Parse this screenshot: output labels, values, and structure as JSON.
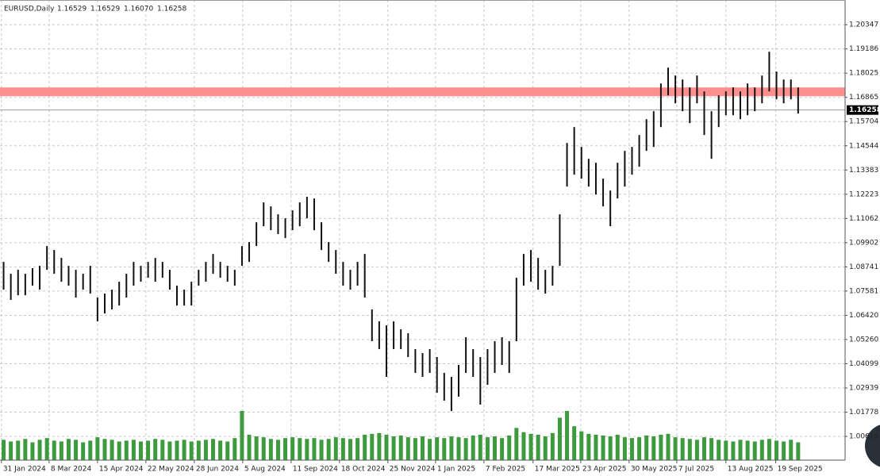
{
  "chart_data": {
    "type": "price-bars",
    "symbol": "EURUSD,Daily",
    "ohlc": [
      1.16529,
      1.16529,
      {
        "value": 1.1607,
        "label": "1.16070"
      },
      1.16258
    ],
    "last_price": 1.16258,
    "zone": [
      1.1692,
      1.1734
    ],
    "zone_color": "#ff7b7b",
    "bar_color": "#111111",
    "volume_color": "#3d9a3d",
    "grid": true,
    "xlim": [
      -0.5,
      116.5
    ],
    "ylim": [
      0.9948,
      1.2153
    ],
    "yticks": [
      1.20347,
      1.19186,
      1.18025,
      1.16865,
      1.15704,
      1.14544,
      1.13383,
      1.12223,
      1.11062,
      1.09902,
      1.08741,
      1.07581,
      {
        "value": 1.0642,
        "label": "1.06420"
      },
      {
        "value": 1.0526,
        "label": "1.05260"
      },
      1.04099,
      1.02939,
      1.01778,
      1.00618
    ],
    "xticks": [
      {
        "value": -0.3,
        "label": "31 Jan 2024"
      },
      {
        "value": 6.3,
        "label": "8 Mar 2024"
      },
      {
        "value": 13,
        "label": "15 Apr 2024"
      },
      {
        "value": 19.7,
        "label": "22 May 2024"
      },
      {
        "value": 26.4,
        "label": "28 Jun 2024"
      },
      {
        "value": 33.1,
        "label": "5 Aug 2024"
      },
      {
        "value": 39.8,
        "label": "11 Sep 2024"
      },
      {
        "value": 46.5,
        "label": "18 Oct 2024"
      },
      {
        "value": 53.2,
        "label": "25 Nov 2024"
      },
      {
        "value": 59.8,
        "label": "1 Jan 2025"
      },
      {
        "value": 66.5,
        "label": "7 Feb 2025"
      },
      {
        "value": 73.3,
        "label": "17 Mar 2025"
      },
      {
        "value": 79.9,
        "label": "23 Apr 2025"
      },
      {
        "value": 86.6,
        "label": "30 May 2025"
      },
      {
        "value": 93.2,
        "label": "7 Jul 2025"
      },
      {
        "value": 100,
        "label": "13 Aug 2025"
      },
      {
        "value": 106.9,
        "label": "19 Sep 2025"
      }
    ],
    "high": [
      1.0898,
      1.0841,
      1.086,
      1.0841,
      1.0868,
      1.0879,
      1.0974,
      1.0955,
      1.0917,
      1.0879,
      1.086,
      1.0841,
      1.0879,
      1.0727,
      1.0746,
      1.0765,
      1.0803,
      1.0841,
      1.0898,
      1.0879,
      1.0898,
      1.0917,
      1.0898,
      1.086,
      1.0784,
      1.0765,
      1.0803,
      1.086,
      1.0898,
      1.0936,
      1.0898,
      1.0879,
      1.086,
      1.0974,
      1.0993,
      1.1088,
      1.1183,
      1.1164,
      1.1126,
      1.1107,
      1.1145,
      1.1183,
      1.121,
      1.1202,
      1.1088,
      1.0993,
      1.0955,
      1.0898,
      1.086,
      1.0898,
      1.0936,
      1.067,
      1.0613,
      1.0594,
      1.0613,
      1.0575,
      1.0556,
      1.048,
      1.0461,
      1.048,
      1.0442,
      1.0366,
      1.0347,
      1.0404,
      1.0537,
      1.048,
      1.0442,
      1.048,
      1.0518,
      1.0537,
      1.0518,
      1.0822,
      1.0936,
      1.0955,
      1.0917,
      1.086,
      1.0879,
      1.1126,
      1.1468,
      1.1544,
      1.1449,
      1.1392,
      1.1373,
      1.1297,
      1.124,
      1.1373,
      1.143,
      1.1449,
      1.1506,
      1.1582,
      1.162,
      1.1753,
      1.1829,
      1.1791,
      1.1772,
      1.1734,
      1.1791,
      1.1715,
      1.162,
      1.1696,
      1.1715,
      1.1734,
      1.1715,
      1.1753,
      1.1734,
      1.1791,
      1.1905,
      1.181,
      1.1772,
      1.1772,
      1.1734
    ],
    "low": [
      1.0765,
      1.0716,
      1.0738,
      1.0738,
      1.0784,
      1.0765,
      1.086,
      1.0841,
      1.0803,
      1.0784,
      1.0727,
      1.0765,
      1.0746,
      1.0613,
      1.0651,
      1.067,
      1.0689,
      1.0727,
      1.0784,
      1.0803,
      1.0822,
      1.0803,
      1.0822,
      1.0765,
      1.0689,
      1.0689,
      1.0689,
      1.0784,
      1.0803,
      1.0841,
      1.0822,
      1.0803,
      1.0784,
      1.0879,
      1.0898,
      1.0974,
      1.1069,
      1.105,
      1.1031,
      1.1012,
      1.105,
      1.1069,
      1.1107,
      1.105,
      1.0955,
      1.0898,
      1.0841,
      1.0784,
      1.0765,
      1.0784,
      1.0727,
      1.0518,
      1.048,
      1.0347,
      1.048,
      1.048,
      1.0442,
      1.0366,
      1.0347,
      1.0366,
      1.0271,
      1.0233,
      1.0183,
      1.0252,
      1.0366,
      1.0347,
      1.0214,
      1.0309,
      1.0366,
      1.0404,
      1.0366,
      1.0518,
      1.0784,
      1.0803,
      1.0765,
      1.0746,
      1.0784,
      1.0879,
      1.1259,
      1.1316,
      1.1297,
      1.1259,
      1.1221,
      1.1164,
      1.1069,
      1.1202,
      1.1259,
      1.1316,
      1.1354,
      1.143,
      1.1449,
      1.1544,
      1.1696,
      1.1658,
      1.162,
      1.1563,
      1.1658,
      1.1506,
      1.1392,
      1.1544,
      1.1601,
      1.1601,
      1.1582,
      1.1601,
      1.162,
      1.1658,
      1.1715,
      1.1677,
      1.1658,
      1.1677,
      1.1609
    ],
    "volume": [
      24,
      22,
      23,
      25,
      21,
      24,
      26,
      23,
      22,
      25,
      24,
      21,
      23,
      27,
      25,
      24,
      22,
      23,
      24,
      22,
      23,
      25,
      24,
      22,
      23,
      24,
      22,
      23,
      24,
      25,
      23,
      22,
      26,
      58,
      30,
      28,
      27,
      25,
      24,
      26,
      27,
      26,
      25,
      26,
      24,
      25,
      27,
      26,
      25,
      26,
      30,
      31,
      32,
      30,
      28,
      29,
      27,
      26,
      28,
      25,
      27,
      26,
      28,
      27,
      26,
      29,
      30,
      27,
      28,
      26,
      29,
      38,
      33,
      31,
      30,
      28,
      32,
      50,
      58,
      40,
      34,
      31,
      30,
      29,
      28,
      30,
      27,
      26,
      27,
      29,
      28,
      30,
      31,
      27,
      26,
      25,
      24,
      27,
      26,
      24,
      23,
      22,
      24,
      23,
      22,
      24,
      25,
      23,
      22,
      24,
      21
    ]
  }
}
